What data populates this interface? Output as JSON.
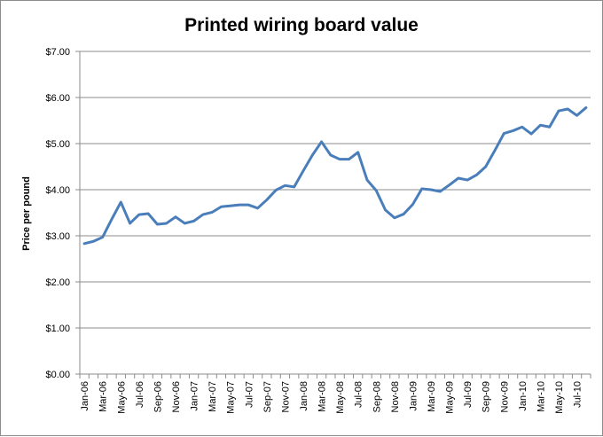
{
  "chart_data": {
    "type": "line",
    "title": "Printed wiring board value",
    "xlabel": "",
    "ylabel": "Price per pound",
    "ylim": [
      0,
      7
    ],
    "yticks": [
      0,
      1,
      2,
      3,
      4,
      5,
      6,
      7
    ],
    "ytick_labels": [
      "$0.00",
      "$1.00",
      "$2.00",
      "$3.00",
      "$4.00",
      "$5.00",
      "$6.00",
      "$7.00"
    ],
    "grid": "horizontal",
    "legend": "none",
    "line_color": "#4a7ebb",
    "x": [
      "Jan-06",
      "Feb-06",
      "Mar-06",
      "Apr-06",
      "May-06",
      "Jun-06",
      "Jul-06",
      "Aug-06",
      "Sep-06",
      "Oct-06",
      "Nov-06",
      "Dec-06",
      "Jan-07",
      "Feb-07",
      "Mar-07",
      "Apr-07",
      "May-07",
      "Jun-07",
      "Jul-07",
      "Aug-07",
      "Sep-07",
      "Oct-07",
      "Nov-07",
      "Dec-07",
      "Jan-08",
      "Feb-08",
      "Mar-08",
      "Apr-08",
      "May-08",
      "Jun-08",
      "Jul-08",
      "Aug-08",
      "Sep-08",
      "Oct-08",
      "Nov-08",
      "Dec-08",
      "Jan-09",
      "Feb-09",
      "Mar-09",
      "Apr-09",
      "May-09",
      "Jun-09",
      "Jul-09",
      "Aug-09",
      "Sep-09",
      "Oct-09",
      "Nov-09",
      "Dec-09",
      "Jan-10",
      "Feb-10",
      "Mar-10",
      "Apr-10",
      "May-10",
      "Jun-10",
      "Jul-10",
      "Aug-10"
    ],
    "x_tick_labels": [
      "Jan-06",
      "Mar-06",
      "May-06",
      "Jul-06",
      "Sep-06",
      "Nov-06",
      "Jan-07",
      "Mar-07",
      "May-07",
      "Jul-07",
      "Sep-07",
      "Nov-07",
      "Jan-08",
      "Mar-08",
      "May-08",
      "Jul-08",
      "Sep-08",
      "Nov-08",
      "Jan-09",
      "Mar-09",
      "May-09",
      "Jul-09",
      "Sep-09",
      "Nov-09",
      "Jan-10",
      "Mar-10",
      "May-10",
      "Jul-10"
    ],
    "values": [
      2.83,
      2.88,
      2.97,
      3.36,
      3.73,
      3.27,
      3.46,
      3.48,
      3.25,
      3.27,
      3.41,
      3.27,
      3.32,
      3.46,
      3.51,
      3.63,
      3.65,
      3.67,
      3.67,
      3.6,
      3.78,
      3.99,
      4.09,
      4.06,
      4.41,
      4.75,
      5.04,
      4.75,
      4.66,
      4.66,
      4.81,
      4.21,
      3.98,
      3.56,
      3.39,
      3.47,
      3.68,
      4.02,
      4.0,
      3.96,
      4.1,
      4.25,
      4.21,
      4.32,
      4.5,
      4.85,
      5.22,
      5.28,
      5.36,
      5.21,
      5.4,
      5.36,
      5.71,
      5.75,
      5.61,
      5.78
    ]
  }
}
